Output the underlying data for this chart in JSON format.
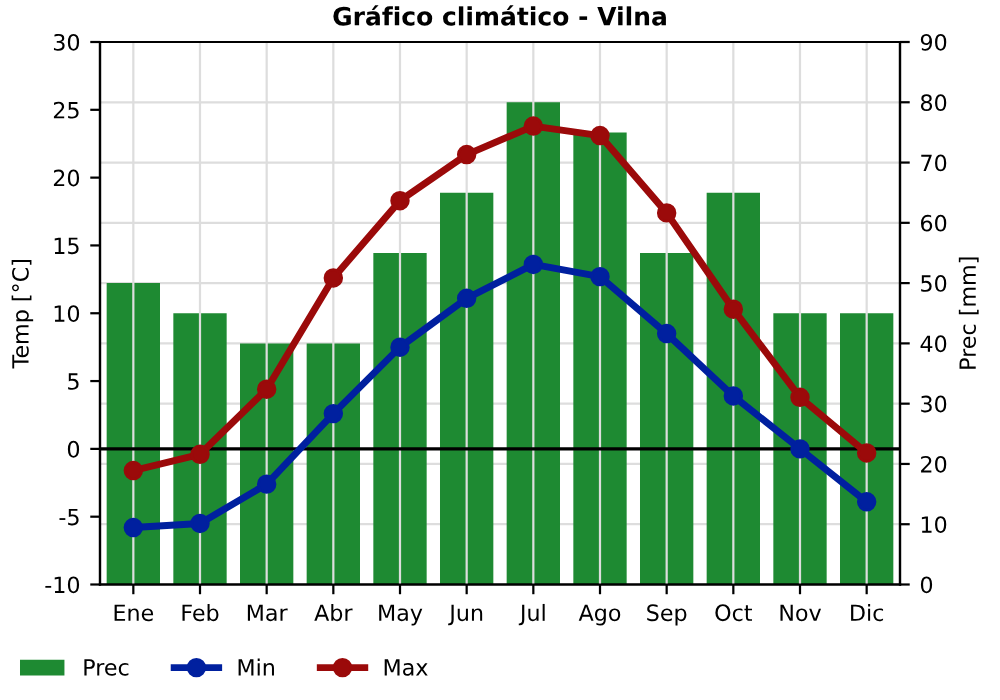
{
  "chart_data": {
    "type": "line",
    "title": "Gráfico climático - Vilna",
    "ylabel": "Temp [°C]",
    "y2label": "Prec [mm]",
    "categories": [
      "Ene",
      "Feb",
      "Mar",
      "Abr",
      "May",
      "Jun",
      "Jul",
      "Ago",
      "Sep",
      "Oct",
      "Nov",
      "Dic"
    ],
    "series": [
      {
        "name": "Prec",
        "type": "bar",
        "axis": "y2",
        "color": "#1e8a32",
        "values": [
          50,
          45,
          40,
          40,
          55,
          65,
          80,
          75,
          55,
          65,
          45,
          45
        ]
      },
      {
        "name": "Min",
        "color": "#00209f",
        "values": [
          -5.8,
          -5.5,
          -2.6,
          2.6,
          7.5,
          11.1,
          13.6,
          12.7,
          8.5,
          3.9,
          0.0,
          -3.9
        ]
      },
      {
        "name": "Max",
        "color": "#9b0a0a",
        "values": [
          -1.6,
          -0.4,
          4.4,
          12.6,
          18.3,
          21.7,
          23.8,
          23.1,
          17.4,
          10.3,
          3.8,
          -0.3
        ]
      }
    ],
    "ylim": [
      -10,
      30
    ],
    "yticks": [
      -10,
      -5,
      0,
      5,
      10,
      15,
      20,
      25,
      30
    ],
    "y2lim": [
      0,
      90
    ],
    "y2ticks": [
      0,
      10,
      20,
      30,
      40,
      50,
      60,
      70,
      80,
      90
    ],
    "ref_lines": [
      {
        "axis": "y",
        "value": 0,
        "color": "#000000"
      }
    ],
    "grid": true,
    "legend": "bottom left",
    "marker": "circle",
    "line_style": "solid"
  }
}
